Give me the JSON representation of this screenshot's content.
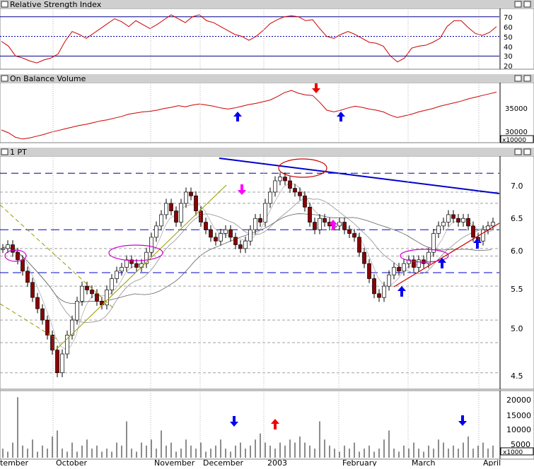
{
  "panels": {
    "rsi": {
      "title": "Relative Strength Index",
      "ticks": [
        "70",
        "60",
        "50",
        "40",
        "30",
        "20"
      ]
    },
    "obv": {
      "title": "On Balance Volume",
      "ticks": [
        "35000",
        "30000"
      ],
      "multiplier": "x10000"
    },
    "price": {
      "title": "1 PT",
      "ticks": [
        "7.0",
        "6.5",
        "6.0",
        "5.5",
        "5.0",
        "4.5"
      ]
    },
    "volume": {
      "ticks": [
        "20000",
        "15000",
        "10000",
        "5000"
      ],
      "multiplier": "x1000"
    }
  },
  "months": [
    "tember",
    "October",
    "November",
    "December",
    "2003",
    "February",
    "March",
    "April"
  ],
  "colors": {
    "up": "#ffffff",
    "down": "#8b0000",
    "rsi_line": "#cc0000",
    "obv_line": "#cc0000",
    "trendline": "#0000cc",
    "support": "#cc0000",
    "arrow_blue": "#0000ee",
    "arrow_magenta": "#ff00ff",
    "arrow_red": "#ee0000",
    "ellipse_magenta": "#cc00cc",
    "ellipse_red": "#cc0000"
  },
  "chart_data": [
    {
      "type": "line",
      "title": "Relative Strength Index",
      "ylim": [
        18,
        77
      ],
      "reference_lines": [
        70,
        50,
        30
      ],
      "x": [
        0,
        10,
        20,
        30,
        40,
        50,
        60,
        70,
        80,
        90,
        100,
        110,
        120,
        130,
        140,
        150,
        160,
        170,
        180,
        190,
        200,
        210,
        220,
        230,
        240,
        250,
        260,
        270,
        280,
        290,
        300,
        310,
        320,
        330,
        340,
        350,
        360,
        370,
        380,
        390,
        400,
        410,
        420,
        430,
        440,
        450,
        460,
        470,
        480,
        490,
        500,
        510,
        520,
        530,
        540,
        550,
        560,
        570,
        580,
        590,
        600,
        610,
        620,
        630,
        640,
        650,
        660,
        670,
        680,
        690,
        700
      ],
      "values": [
        45,
        40,
        30,
        28,
        25,
        23,
        26,
        28,
        32,
        45,
        55,
        52,
        48,
        53,
        58,
        63,
        68,
        65,
        60,
        66,
        62,
        58,
        62,
        67,
        72,
        68,
        64,
        70,
        72,
        66,
        64,
        60,
        56,
        52,
        50,
        46,
        50,
        56,
        63,
        67,
        70,
        71,
        70,
        66,
        67,
        58,
        50,
        48,
        52,
        55,
        52,
        48,
        44,
        43,
        40,
        30,
        24,
        28,
        38,
        40,
        41,
        44,
        48,
        60,
        66,
        66,
        59,
        53,
        51,
        54,
        60
      ]
    },
    {
      "type": "line",
      "title": "On Balance Volume",
      "ylabel": "x10000",
      "ylim": [
        29500,
        39500
      ],
      "x": [
        0,
        10,
        20,
        30,
        40,
        50,
        60,
        70,
        80,
        90,
        100,
        110,
        120,
        130,
        140,
        150,
        160,
        170,
        180,
        190,
        200,
        210,
        220,
        230,
        240,
        250,
        260,
        270,
        280,
        290,
        300,
        310,
        320,
        330,
        340,
        350,
        360,
        370,
        380,
        390,
        400,
        410,
        420,
        430,
        440,
        450,
        460,
        470,
        480,
        490,
        500,
        510,
        520,
        530,
        540,
        550,
        560,
        570,
        580,
        590,
        600,
        610,
        620,
        630,
        640,
        650,
        660,
        670,
        680,
        690,
        700
      ],
      "values": [
        31500,
        31000,
        30200,
        29900,
        30100,
        30400,
        30700,
        31100,
        31400,
        31700,
        32000,
        32300,
        32500,
        32800,
        33100,
        33300,
        33600,
        33900,
        34300,
        34500,
        34700,
        34800,
        35000,
        35300,
        35500,
        35800,
        35600,
        35900,
        36100,
        35900,
        35700,
        35400,
        35200,
        35400,
        35700,
        36000,
        36200,
        36500,
        36800,
        37400,
        38100,
        38500,
        38000,
        37700,
        37600,
        36400,
        35000,
        34700,
        35000,
        35400,
        35700,
        35500,
        35200,
        35000,
        34700,
        34100,
        33700,
        34000,
        34300,
        34700,
        35000,
        35300,
        35700,
        36000,
        36300,
        36600,
        37000,
        37300,
        37600,
        37900,
        38200
      ]
    },
    {
      "type": "candlestick",
      "title": "1 PT",
      "ylim": [
        4.4,
        7.45
      ],
      "series": [
        {
          "name": "",
          "x": [
            0,
            7,
            14,
            21,
            28,
            35,
            42,
            49,
            56,
            63,
            70,
            77,
            84,
            91,
            98,
            105,
            112,
            119,
            126,
            133,
            140,
            147,
            154,
            161,
            168,
            175,
            182,
            189,
            196,
            203,
            210,
            217,
            224,
            231,
            238,
            245,
            252,
            259,
            266,
            273,
            280,
            287,
            294,
            301,
            308,
            315,
            322,
            329,
            336,
            343,
            350,
            357,
            364,
            371,
            378,
            385,
            392,
            399,
            406,
            413,
            420,
            427,
            434,
            441,
            448,
            455,
            462,
            469,
            476,
            483,
            490,
            497,
            504,
            511,
            518,
            525,
            532,
            539,
            546,
            553,
            560,
            567,
            574,
            581,
            588,
            595,
            602,
            609,
            616,
            623,
            630,
            637,
            644,
            651,
            658,
            665,
            672,
            679,
            686,
            693
          ],
          "values": [
            6.25,
            6.3,
            6.2,
            6.1,
            5.95,
            5.8,
            5.6,
            5.45,
            5.3,
            5.1,
            4.9,
            4.6,
            4.85,
            5.1,
            5.3,
            5.55,
            5.75,
            5.7,
            5.65,
            5.55,
            5.5,
            5.7,
            5.85,
            5.95,
            6.0,
            6.1,
            6.05,
            6.0,
            6.05,
            6.2,
            6.4,
            6.55,
            6.7,
            6.85,
            6.75,
            6.6,
            6.85,
            7.0,
            6.95,
            6.75,
            6.6,
            6.5,
            6.4,
            6.35,
            6.45,
            6.5,
            6.4,
            6.3,
            6.25,
            6.35,
            6.5,
            6.65,
            6.6,
            6.85,
            7.0,
            7.15,
            7.2,
            7.15,
            7.05,
            7.0,
            6.95,
            6.8,
            6.6,
            6.5,
            6.65,
            6.6,
            6.55,
            6.55,
            6.6,
            6.5,
            6.45,
            6.4,
            6.2,
            6.05,
            5.85,
            5.65,
            5.6,
            5.75,
            5.9,
            6.0,
            5.95,
            6.05,
            6.1,
            6.0,
            6.1,
            6.05,
            6.2,
            6.45,
            6.55,
            6.6,
            6.7,
            6.65,
            6.6,
            6.65,
            6.55,
            6.4,
            6.35,
            6.5,
            6.55,
            6.6
          ]
        }
      ],
      "annotations": [
        "resistance trendline",
        "support trendline",
        "ellipses",
        "arrows"
      ]
    },
    {
      "type": "bar",
      "title": "",
      "ylabel": "x1000",
      "ylim": [
        0,
        21000
      ],
      "x": [
        0,
        7,
        14,
        21,
        28,
        35,
        42,
        49,
        56,
        63,
        70,
        77,
        84,
        91,
        98,
        105,
        112,
        119,
        126,
        133,
        140,
        147,
        154,
        161,
        168,
        175,
        182,
        189,
        196,
        203,
        210,
        217,
        224,
        231,
        238,
        245,
        252,
        259,
        266,
        273,
        280,
        287,
        294,
        301,
        308,
        315,
        322,
        329,
        336,
        343,
        350,
        357,
        364,
        371,
        378,
        385,
        392,
        399,
        406,
        413,
        420,
        427,
        434,
        441,
        448,
        455,
        462,
        469,
        476,
        483,
        490,
        497,
        504,
        511,
        518,
        525,
        532,
        539,
        546,
        553,
        560,
        567,
        574,
        581,
        588,
        595,
        602,
        609,
        616,
        623,
        630,
        637,
        644,
        651,
        658,
        665,
        672,
        679,
        686,
        693
      ],
      "values": [
        3000,
        2000,
        5000,
        20000,
        4000,
        3000,
        6000,
        2000,
        4000,
        3000,
        7000,
        9000,
        3000,
        2000,
        5000,
        2000,
        4000,
        6000,
        3000,
        4000,
        2000,
        3000,
        2000,
        5000,
        4000,
        12000,
        3000,
        2000,
        5000,
        4000,
        6000,
        3000,
        9000,
        4000,
        5000,
        2000,
        3000,
        6000,
        4000,
        3000,
        5000,
        2000,
        3000,
        4000,
        6000,
        3000,
        2000,
        4000,
        5000,
        3000,
        4000,
        6000,
        8000,
        5000,
        4000,
        3000,
        5000,
        4000,
        6000,
        5000,
        7000,
        5000,
        4000,
        3000,
        12000,
        6000,
        4000,
        3000,
        2000,
        4000,
        3000,
        5000,
        2000,
        3000,
        4000,
        2000,
        3000,
        6000,
        9000,
        3000,
        2000,
        4000,
        3000,
        5000,
        3000,
        2000,
        4000,
        3000,
        6000,
        5000,
        3000,
        4000,
        3000,
        5000,
        7000,
        3000,
        4000,
        5000,
        3000,
        4000
      ]
    }
  ]
}
